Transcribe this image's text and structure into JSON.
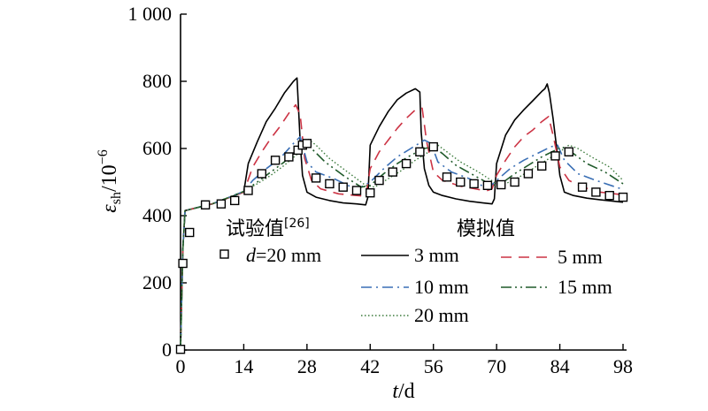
{
  "chart_data": {
    "type": "line",
    "xlabel": {
      "var": "t",
      "unit": "/d"
    },
    "ylabel": {
      "var": "ε",
      "sub": "sh",
      "unit": "/10",
      "exp": "−6"
    },
    "xlim": [
      0,
      98
    ],
    "ylim": [
      0,
      1000
    ],
    "xticks": [
      0,
      14,
      28,
      42,
      56,
      70,
      84,
      98
    ],
    "yticks": [
      0,
      200,
      400,
      600,
      800,
      1000
    ],
    "ytick_labels": [
      "0",
      "200",
      "400",
      "600",
      "800",
      "1 000"
    ],
    "grid": false,
    "legend": {
      "test_title": "试验值",
      "test_ref": "[26]",
      "test_entry_var": "d",
      "test_entry_value": "=20 mm",
      "sim_title": "模拟值"
    },
    "series": [
      {
        "name": "3 mm",
        "style": "solid",
        "color": "#000000",
        "x": [
          0,
          0.5,
          1,
          7,
          14,
          15,
          17,
          19,
          21,
          23,
          25,
          25.8,
          26.5,
          27,
          28,
          30,
          33,
          36,
          39,
          41,
          41.5,
          42,
          44,
          46,
          48,
          50,
          52,
          53,
          53.3,
          54,
          55,
          56,
          58,
          61,
          64,
          67,
          69,
          69.5,
          70,
          72,
          74,
          76,
          78,
          80,
          80.7,
          81.2,
          81.7,
          82.5,
          83.5,
          84,
          85,
          87,
          90,
          93,
          96,
          98
        ],
        "y": [
          0,
          300,
          415,
          435,
          470,
          555,
          620,
          680,
          720,
          765,
          800,
          810,
          620,
          520,
          470,
          455,
          445,
          438,
          435,
          432,
          455,
          610,
          665,
          710,
          745,
          765,
          778,
          768,
          650,
          540,
          490,
          470,
          460,
          450,
          443,
          438,
          435,
          450,
          555,
          640,
          685,
          715,
          742,
          770,
          778,
          792,
          765,
          690,
          580,
          520,
          470,
          460,
          452,
          447,
          443,
          440
        ]
      },
      {
        "name": "5 mm",
        "style": "dashed",
        "color": "#cc3344",
        "x": [
          0,
          0.5,
          1,
          7,
          14,
          16,
          18,
          20,
          22,
          24,
          25.5,
          26.5,
          27.5,
          29,
          31,
          35,
          39,
          41,
          42,
          44,
          46,
          48,
          50,
          52,
          53.5,
          54.5,
          56,
          58,
          62,
          66,
          68,
          69,
          70,
          72,
          74,
          76,
          78,
          80,
          81.5,
          82.5,
          84,
          86,
          89,
          93,
          98
        ],
        "y": [
          0,
          300,
          415,
          435,
          470,
          545,
          590,
          630,
          665,
          705,
          730,
          700,
          570,
          505,
          480,
          465,
          460,
          458,
          540,
          590,
          625,
          660,
          690,
          715,
          720,
          620,
          530,
          505,
          488,
          478,
          475,
          480,
          520,
          565,
          605,
          635,
          655,
          680,
          695,
          640,
          545,
          505,
          485,
          470,
          462
        ]
      },
      {
        "name": "10 mm",
        "style": "dashdot",
        "color": "#3a6fb5",
        "x": [
          0,
          0.5,
          1,
          7,
          14,
          16,
          19,
          22,
          25,
          26.5,
          28,
          30,
          34,
          39,
          42,
          45,
          48,
          51,
          54,
          55.5,
          57,
          60,
          64,
          68,
          70,
          73,
          76,
          79,
          82,
          83.5,
          85,
          88,
          92,
          98
        ],
        "y": [
          0,
          300,
          415,
          435,
          472,
          505,
          540,
          570,
          615,
          635,
          560,
          530,
          510,
          478,
          500,
          540,
          575,
          600,
          625,
          615,
          560,
          530,
          510,
          480,
          505,
          540,
          565,
          585,
          605,
          610,
          565,
          525,
          505,
          478
        ]
      },
      {
        "name": "15 mm",
        "style": "dashdotdot",
        "color": "#1f5a2a",
        "x": [
          0,
          0.5,
          1,
          7,
          14,
          17,
          20,
          23,
          26,
          27.5,
          29,
          32,
          36,
          40,
          42,
          45,
          48,
          51,
          54,
          56,
          58,
          61,
          65,
          69,
          71,
          74,
          77,
          80,
          83,
          84.5,
          87,
          90,
          94,
          98
        ],
        "y": [
          0,
          300,
          415,
          435,
          472,
          500,
          530,
          560,
          600,
          620,
          600,
          560,
          520,
          485,
          490,
          525,
          555,
          580,
          600,
          605,
          585,
          550,
          520,
          490,
          495,
          525,
          550,
          575,
          595,
          605,
          585,
          555,
          530,
          495
        ]
      },
      {
        "name": "20 mm",
        "style": "dotted",
        "color": "#3b7a3b",
        "x": [
          0,
          0.5,
          1,
          7,
          14,
          17,
          20,
          23,
          26,
          28,
          30,
          33,
          37,
          41,
          43,
          46,
          49,
          52,
          55,
          57,
          59,
          62,
          66,
          70,
          72,
          75,
          78,
          81,
          84,
          86,
          88,
          91,
          95,
          98
        ],
        "y": [
          0,
          300,
          415,
          435,
          472,
          495,
          520,
          550,
          585,
          630,
          610,
          570,
          530,
          490,
          485,
          510,
          535,
          565,
          590,
          610,
          590,
          560,
          530,
          495,
          495,
          515,
          540,
          565,
          590,
          610,
          600,
          575,
          545,
          505
        ]
      }
    ],
    "test_points": {
      "x": [
        0,
        0.5,
        2,
        5.5,
        9,
        12,
        15,
        18,
        21,
        24,
        26,
        27,
        28,
        30,
        33,
        36,
        39,
        42,
        44,
        47,
        50,
        53,
        56,
        59,
        62,
        65,
        68,
        71,
        74,
        77,
        80,
        83,
        86,
        89,
        92,
        95,
        98
      ],
      "y": [
        2,
        258,
        350,
        432,
        435,
        445,
        475,
        525,
        565,
        575,
        595,
        610,
        615,
        512,
        495,
        485,
        475,
        468,
        505,
        530,
        555,
        590,
        605,
        515,
        500,
        495,
        490,
        492,
        500,
        525,
        548,
        578,
        590,
        485,
        470,
        460,
        455
      ]
    }
  }
}
